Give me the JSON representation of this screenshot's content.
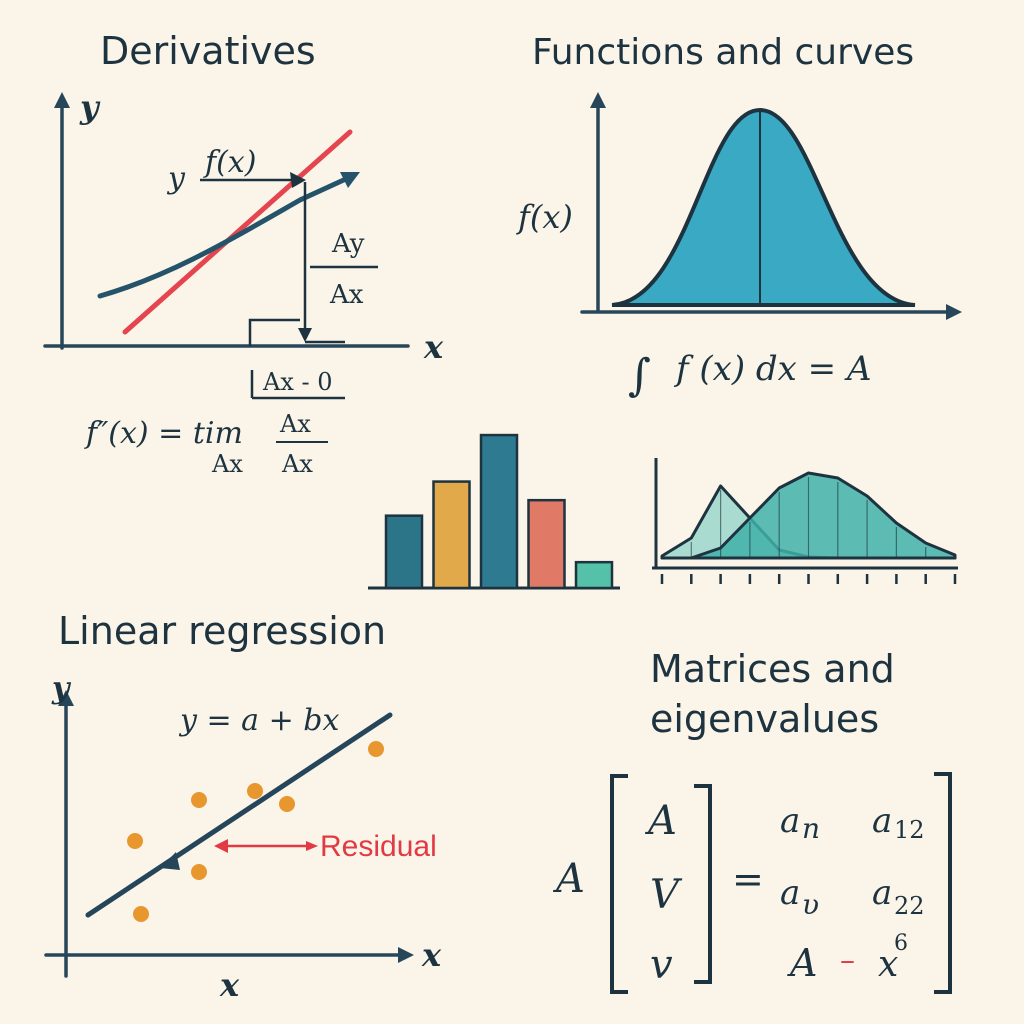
{
  "derivatives": {
    "title": "Derivatives",
    "y_axis": "y",
    "x_axis": "x",
    "curve_label_y": "y",
    "curve_label_fx": "f(x)",
    "dy": "Ay",
    "dx": "Ax",
    "limit_cond": "Ax - 0",
    "formula_left": "f″(x) = tim",
    "formula_sub": "Ax",
    "formula_num": "Ax",
    "formula_den": "Ax",
    "colors": {
      "tangent": "#e5454f",
      "curve": "#24536a"
    }
  },
  "functions": {
    "title": "Functions and curves",
    "y_label": "f(x)",
    "integral_sign": "∫",
    "integral_expr": "f (x) dx = A",
    "colors": {
      "fill": "#3aa9c4",
      "outline": "#1d3340"
    }
  },
  "chart_data": [
    {
      "type": "bar",
      "categories": [
        "",
        "",
        "",
        "",
        ""
      ],
      "values": [
        70,
        103,
        148,
        85,
        25
      ],
      "colors": [
        "#2c7488",
        "#e2a94a",
        "#2e7a90",
        "#e07a66",
        "#55c1a8"
      ]
    },
    {
      "type": "area",
      "x": [
        0,
        1,
        2,
        3,
        4,
        5,
        6,
        7,
        8,
        9,
        10
      ],
      "series": [
        {
          "values": [
            2,
            20,
            72,
            40,
            8,
            1,
            0,
            0,
            0,
            0,
            0
          ]
        },
        {
          "values": [
            0,
            0,
            10,
            40,
            70,
            85,
            80,
            62,
            35,
            15,
            3
          ]
        }
      ],
      "colors": [
        "#8fd3c8",
        "#3fb0a8"
      ]
    }
  ],
  "regression": {
    "title": "Linear regression",
    "y_axis": "y",
    "x_axis": "x",
    "x_below": "x",
    "equation": "y = a + bx",
    "residual_label": "Residual",
    "colors": {
      "points": "#e8962e",
      "line": "#24455a",
      "residual": "#e23a45"
    }
  },
  "matrices": {
    "title_line1": "Matrices and",
    "title_line2": "eigenvalues",
    "left_symbol": "A",
    "vector": [
      "A",
      "V",
      "v"
    ],
    "equals": "=",
    "cells": [
      "a",
      "n",
      "a",
      "12",
      "a",
      "υ",
      "a",
      "22"
    ],
    "bottom_a": "A",
    "bottom_dash": "–",
    "bottom_x": "x",
    "bottom_sup": "6"
  }
}
